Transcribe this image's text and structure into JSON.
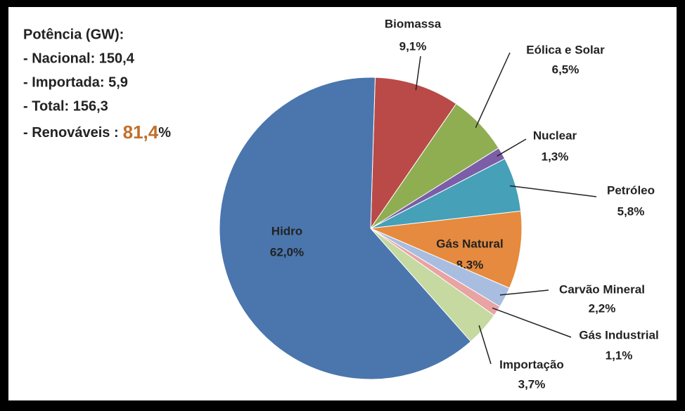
{
  "chart_data": {
    "type": "pie",
    "categories": [
      "Biomassa",
      "Eólica e Solar",
      "Nuclear",
      "Petróleo",
      "Gás Natural",
      "Carvão Mineral",
      "Gás Industrial",
      "Importação",
      "Hidro"
    ],
    "values": [
      9.1,
      6.5,
      1.3,
      5.8,
      8.3,
      2.2,
      1.1,
      3.7,
      62.0
    ],
    "value_labels": [
      "9,1%",
      "6,5%",
      "1,3%",
      "5,8%",
      "8,3%",
      "2,2%",
      "1,1%",
      "3,7%",
      "62,0%"
    ],
    "colors": [
      "#b94a48",
      "#8fae52",
      "#7b5ea7",
      "#45a0b8",
      "#e58a3e",
      "#a9bde0",
      "#e8a3a2",
      "#c5d9a0",
      "#4a76ad"
    ],
    "annotations": [
      "Potência (GW):",
      "- Nacional:  150,4",
      "- Importada: 5,9",
      "- Total: 156,3"
    ],
    "highlight": {
      "prefix": "- Renováveis :",
      "value": "81,4",
      "suffix": "%"
    }
  }
}
